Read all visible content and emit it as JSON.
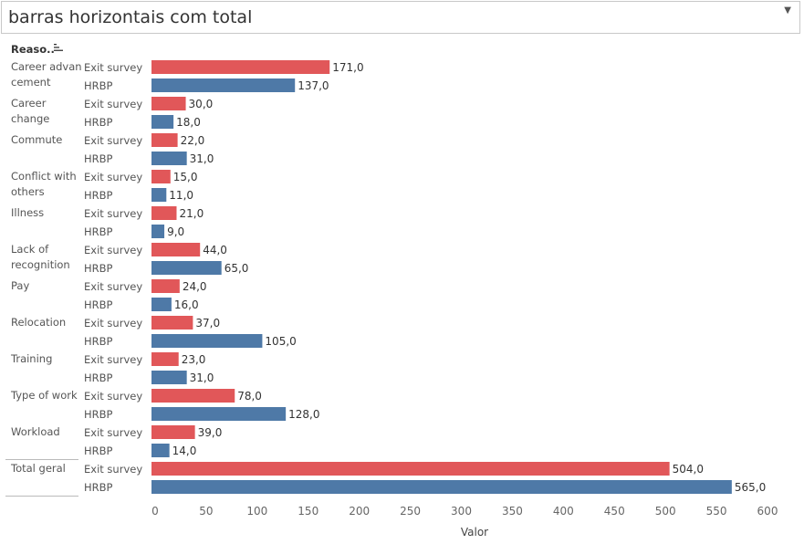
{
  "title": {
    "text": "barras horizontais com total"
  },
  "header": {
    "column_label": "Reaso.."
  },
  "icons": {
    "dropdown": "chevron-down-icon",
    "sort": "sort-icon"
  },
  "colors": {
    "exit_survey": "#e15759",
    "hrbp": "#4e79a7"
  },
  "chart_data": {
    "type": "bar",
    "orientation": "horizontal",
    "xlabel": "Valor",
    "xlim": [
      0,
      600
    ],
    "xticks": [
      0,
      50,
      100,
      150,
      200,
      250,
      300,
      350,
      400,
      450,
      500,
      550,
      600
    ],
    "grid": false,
    "groups": [
      {
        "name": "Career advancement",
        "lines": [
          "Career advan",
          "cement"
        ],
        "rows": [
          {
            "sub": "Exit survey",
            "value": 171,
            "label": "171,0"
          },
          {
            "sub": "HRBP",
            "value": 137,
            "label": "137,0"
          }
        ]
      },
      {
        "name": "Career change",
        "lines": [
          "Career",
          "change"
        ],
        "rows": [
          {
            "sub": "Exit survey",
            "value": 30,
            "label": "30,0"
          },
          {
            "sub": "HRBP",
            "value": 18,
            "label": "18,0"
          }
        ]
      },
      {
        "name": "Commute",
        "lines": [
          "Commute"
        ],
        "rows": [
          {
            "sub": "Exit survey",
            "value": 22,
            "label": "22,0"
          },
          {
            "sub": "HRBP",
            "value": 31,
            "label": "31,0"
          }
        ]
      },
      {
        "name": "Conflict with others",
        "lines": [
          "Conflict with",
          "others"
        ],
        "rows": [
          {
            "sub": "Exit survey",
            "value": 15,
            "label": "15,0"
          },
          {
            "sub": "HRBP",
            "value": 11,
            "label": "11,0"
          }
        ]
      },
      {
        "name": "Illness",
        "lines": [
          "Illness"
        ],
        "rows": [
          {
            "sub": "Exit survey",
            "value": 21,
            "label": "21,0"
          },
          {
            "sub": "HRBP",
            "value": 9,
            "label": "9,0"
          }
        ]
      },
      {
        "name": "Lack of recognition",
        "lines": [
          "Lack of",
          "recognition"
        ],
        "rows": [
          {
            "sub": "Exit survey",
            "value": 44,
            "label": "44,0"
          },
          {
            "sub": "HRBP",
            "value": 65,
            "label": "65,0"
          }
        ]
      },
      {
        "name": "Pay",
        "lines": [
          "Pay"
        ],
        "rows": [
          {
            "sub": "Exit survey",
            "value": 24,
            "label": "24,0"
          },
          {
            "sub": "HRBP",
            "value": 16,
            "label": "16,0"
          }
        ]
      },
      {
        "name": "Relocation",
        "lines": [
          "Relocation"
        ],
        "rows": [
          {
            "sub": "Exit survey",
            "value": 37,
            "label": "37,0"
          },
          {
            "sub": "HRBP",
            "value": 105,
            "label": "105,0"
          }
        ]
      },
      {
        "name": "Training",
        "lines": [
          "Training"
        ],
        "rows": [
          {
            "sub": "Exit survey",
            "value": 23,
            "label": "23,0"
          },
          {
            "sub": "HRBP",
            "value": 31,
            "label": "31,0"
          }
        ]
      },
      {
        "name": "Type of work",
        "lines": [
          "Type of work"
        ],
        "rows": [
          {
            "sub": "Exit survey",
            "value": 78,
            "label": "78,0"
          },
          {
            "sub": "HRBP",
            "value": 128,
            "label": "128,0"
          }
        ]
      },
      {
        "name": "Workload",
        "lines": [
          "Workload"
        ],
        "rows": [
          {
            "sub": "Exit survey",
            "value": 39,
            "label": "39,0"
          },
          {
            "sub": "HRBP",
            "value": 14,
            "label": "14,0"
          }
        ]
      },
      {
        "name": "Total geral",
        "lines": [
          "Total geral"
        ],
        "is_total": true,
        "rows": [
          {
            "sub": "Exit survey",
            "value": 504,
            "label": "504,0"
          },
          {
            "sub": "HRBP",
            "value": 565,
            "label": "565,0"
          }
        ]
      }
    ]
  }
}
